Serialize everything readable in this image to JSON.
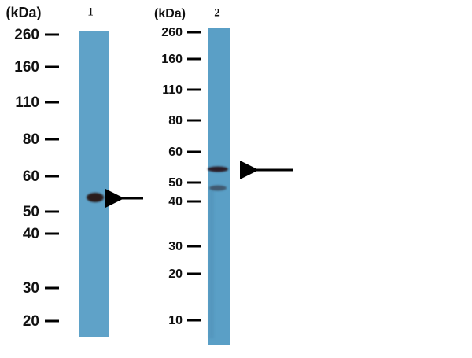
{
  "panels": [
    {
      "unit": "(kDa)",
      "lane": "1",
      "markers": [
        "260",
        "160",
        "110",
        "80",
        "60",
        "50",
        "40",
        "30",
        "20"
      ]
    },
    {
      "unit": "(kDa)",
      "lane": "2",
      "markers": [
        "260",
        "160",
        "110",
        "80",
        "60",
        "50",
        "40",
        "30",
        "20",
        "10"
      ]
    }
  ]
}
